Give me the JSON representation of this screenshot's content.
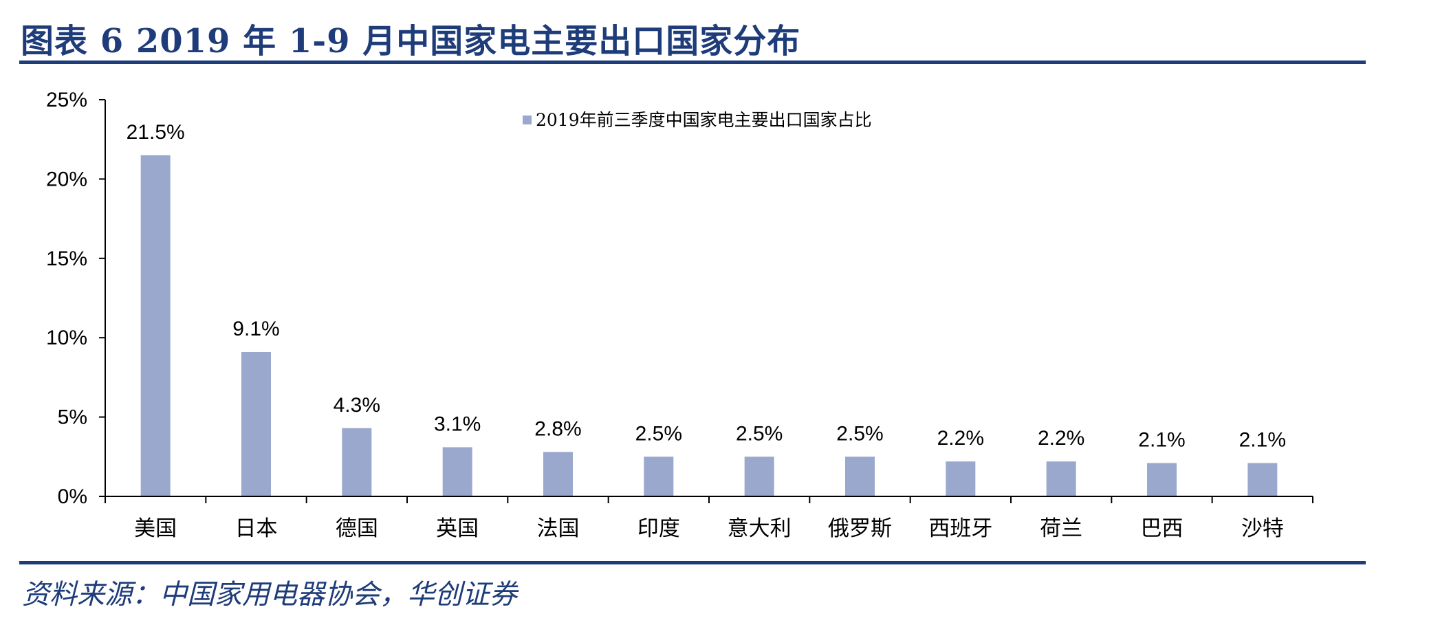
{
  "header": {
    "title": "图表 6   2019 年 1-9 月中国家电主要出口国家分布"
  },
  "footer": {
    "source": "资料来源：中国家用电器协会，华创证券"
  },
  "colors": {
    "bar": "#9ba8cd",
    "brand": "#1f3c7a",
    "axis": "#000000"
  },
  "chart_data": {
    "type": "bar",
    "categories": [
      "美国",
      "日本",
      "德国",
      "英国",
      "法国",
      "印度",
      "意大利",
      "俄罗斯",
      "西班牙",
      "荷兰",
      "巴西",
      "沙特"
    ],
    "series": [
      {
        "name": "2019年前三季度中国家电主要出口国家占比",
        "values": [
          21.5,
          9.1,
          4.3,
          3.1,
          2.8,
          2.5,
          2.5,
          2.5,
          2.2,
          2.2,
          2.1,
          2.1
        ],
        "labels": [
          "21.5%",
          "9.1%",
          "4.3%",
          "3.1%",
          "2.8%",
          "2.5%",
          "2.5%",
          "2.5%",
          "2.2%",
          "2.2%",
          "2.1%",
          "2.1%"
        ]
      }
    ],
    "ylim": [
      0,
      25
    ],
    "yticks": [
      "0%",
      "5%",
      "10%",
      "15%",
      "20%",
      "25%"
    ],
    "grid": false,
    "legend_position": "top-center"
  }
}
